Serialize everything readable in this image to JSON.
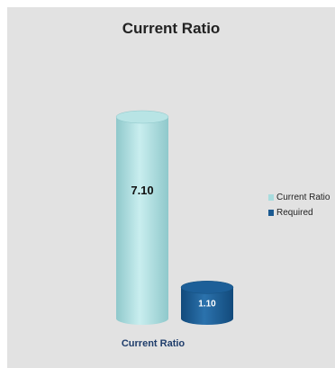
{
  "chart_data": {
    "type": "bar",
    "title": "Current Ratio",
    "categories": [
      "Current Ratio"
    ],
    "series": [
      {
        "name": "Current Ratio",
        "values": [
          7.1
        ],
        "label": "7.10",
        "color": "#a8dcde"
      },
      {
        "name": "Required",
        "values": [
          1.1
        ],
        "label": "1.10",
        "color": "#1b5a91"
      }
    ],
    "xlabel": "Current Ratio",
    "ylabel": "",
    "ylim": [
      0,
      7.1
    ],
    "grid": false,
    "legend_position": "right"
  }
}
